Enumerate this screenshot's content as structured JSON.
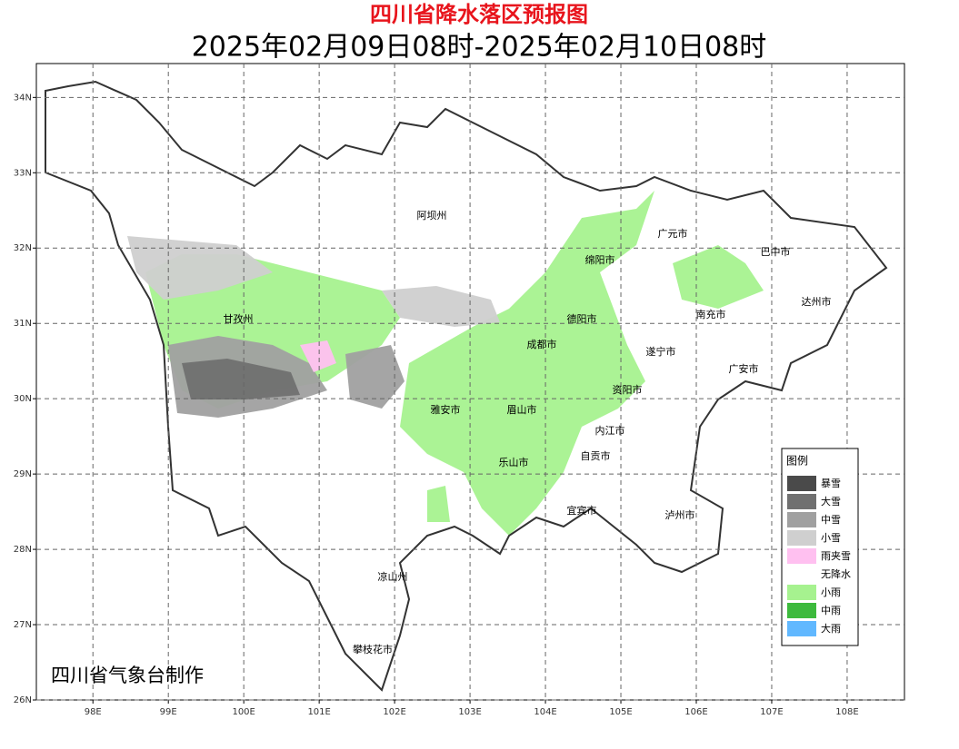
{
  "header": {
    "title": "四川省降水落区预报图",
    "subtitle": "2025年02月09日08时-2025年02月10日08时"
  },
  "map": {
    "xlim": [
      97.25,
      108.76
    ],
    "ylim": [
      26,
      34.45
    ],
    "xticks": [
      {
        "value": 98,
        "label": "98E"
      },
      {
        "value": 99,
        "label": "99E"
      },
      {
        "value": 100,
        "label": "100E"
      },
      {
        "value": 101,
        "label": "101E"
      },
      {
        "value": 102,
        "label": "102E"
      },
      {
        "value": 103,
        "label": "103E"
      },
      {
        "value": 104,
        "label": "104E"
      },
      {
        "value": 105,
        "label": "105E"
      },
      {
        "value": 106,
        "label": "106E"
      },
      {
        "value": 107,
        "label": "107E"
      },
      {
        "value": 108,
        "label": "108E"
      }
    ],
    "yticks": [
      {
        "value": 26,
        "label": "26N"
      },
      {
        "value": 27,
        "label": "27N"
      },
      {
        "value": 28,
        "label": "28N"
      },
      {
        "value": 29,
        "label": "29N"
      },
      {
        "value": 30,
        "label": "30N"
      },
      {
        "value": 31,
        "label": "31N"
      },
      {
        "value": 32,
        "label": "32N"
      },
      {
        "value": 33,
        "label": "33N"
      },
      {
        "value": 34,
        "label": "34N"
      }
    ],
    "places": [
      "阿坝州",
      "甘孜州",
      "绵阳市",
      "广元市",
      "巴中市",
      "达州市",
      "南充市",
      "德阳市",
      "成都市",
      "遂宁市",
      "广安市",
      "资阳市",
      "雅安市",
      "眉山市",
      "内江市",
      "自贡市",
      "乐山市",
      "宜宾市",
      "泸州市",
      "凉山州",
      "攀枝花市"
    ],
    "legend": {
      "title": "图例",
      "items": [
        {
          "label": "暴雪",
          "color": "#4a4a4a"
        },
        {
          "label": "大雪",
          "color": "#707070"
        },
        {
          "label": "中雪",
          "color": "#a0a0a0"
        },
        {
          "label": "小雪",
          "color": "#cfcfcf"
        },
        {
          "label": "雨夹雪",
          "color": "#ffc0f0"
        },
        {
          "label": "无降水",
          "color": "#ffffff"
        },
        {
          "label": "小雨",
          "color": "#a6f28f"
        },
        {
          "label": "中雨",
          "color": "#3dba3d"
        },
        {
          "label": "大雨",
          "color": "#61b8ff"
        }
      ]
    },
    "credit": "四川省气象台制作"
  }
}
